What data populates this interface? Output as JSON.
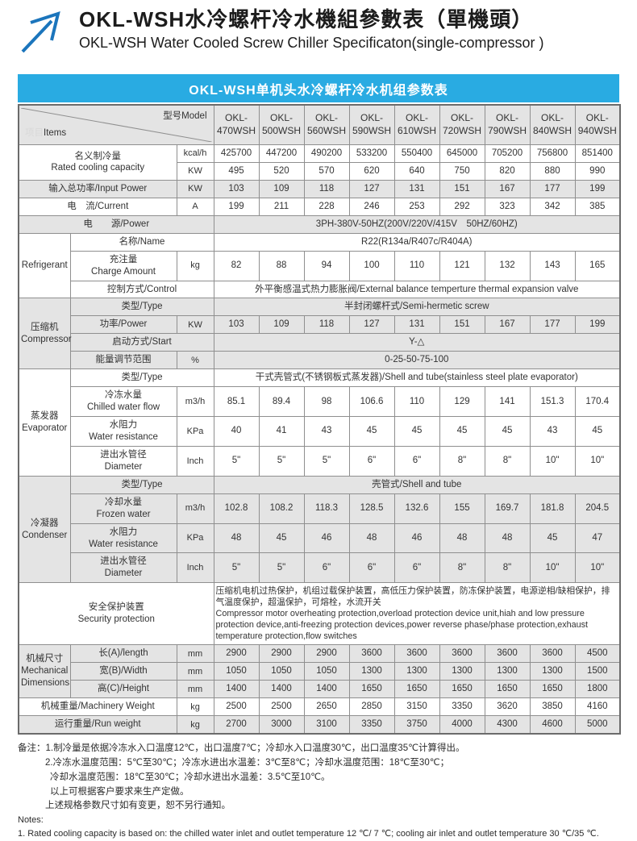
{
  "header": {
    "title_zh": "OKL-WSH水冷螺杆冷水機組參數表（單機頭）",
    "title_en": "OKL-WSH Water Cooled Screw Chiller Specificaton(single-compressor )",
    "logo_color": "#1b75bc"
  },
  "banner": {
    "text": "OKL-WSH单机头水冷螺杆冷水机组参数表",
    "bg_color": "#29abe2"
  },
  "table": {
    "corner": {
      "items_zh": "项目",
      "items_en": "Items",
      "model": "型号Model"
    },
    "models": [
      "OKL-470WSH",
      "OKL-500WSH",
      "OKL-560WSH",
      "OKL-590WSH",
      "OKL-610WSH",
      "OKL-720WSH",
      "OKL-790WSH",
      "OKL-840WSH",
      "OKL-940WSH"
    ],
    "rows": [
      {
        "name": "rated-cooling-kcal",
        "label": "名义制冷量\nRated cooling capacity",
        "label_colspan": 2,
        "label_rowspan": 2,
        "unit": "kcal/h",
        "values": [
          "425700",
          "447200",
          "490200",
          "533200",
          "550400",
          "645000",
          "705200",
          "756800",
          "851400"
        ],
        "shade": false
      },
      {
        "name": "rated-cooling-kw",
        "unit": "KW",
        "values": [
          "495",
          "520",
          "570",
          "620",
          "640",
          "750",
          "820",
          "880",
          "990"
        ],
        "shade": false
      },
      {
        "name": "input-power",
        "label": "输入总功率/Input Power",
        "label_colspan": 2,
        "unit": "KW",
        "values": [
          "103",
          "109",
          "118",
          "127",
          "131",
          "151",
          "167",
          "177",
          "199"
        ],
        "shade": true
      },
      {
        "name": "current",
        "label": "电　流/Current",
        "label_colspan": 2,
        "unit": "A",
        "values": [
          "199",
          "211",
          "228",
          "246",
          "253",
          "292",
          "323",
          "342",
          "385"
        ],
        "shade": false
      },
      {
        "name": "power-supply",
        "label": "电　　源/Power",
        "label_colspan": 3,
        "span": "3PH-380V-50HZ(200V/220V/415V　50HZ/60HZ)",
        "shade": true
      },
      {
        "name": "refrigerant-name",
        "section": "Refrigerant",
        "section_rowspan": 3,
        "label": "名称/Name",
        "label_colspan": 2,
        "span": "R22(R134a/R407c/R404A)",
        "shade": false
      },
      {
        "name": "refrigerant-charge",
        "label": "充注量\nCharge Amount",
        "unit": "kg",
        "values": [
          "82",
          "88",
          "94",
          "100",
          "110",
          "121",
          "132",
          "143",
          "165"
        ],
        "shade": false
      },
      {
        "name": "refrigerant-control",
        "label": "控制方式/Control",
        "label_colspan": 2,
        "span": "外平衡感温式热力膨胀阀/External balance temperture thermal expansion valve",
        "shade": false
      },
      {
        "name": "compressor-type",
        "section": "压缩机\nCompressor",
        "section_rowspan": 4,
        "label": "类型/Type",
        "label_colspan": 2,
        "span": "半封闭螺杆式/Semi-hermetic screw",
        "shade": true
      },
      {
        "name": "compressor-power",
        "label": "功率/Power",
        "unit": "KW",
        "values": [
          "103",
          "109",
          "118",
          "127",
          "131",
          "151",
          "167",
          "177",
          "199"
        ],
        "shade": true
      },
      {
        "name": "compressor-start",
        "label": "启动方式/Start",
        "label_colspan": 2,
        "span": "Y-△",
        "shade": true
      },
      {
        "name": "compressor-energy-range",
        "label": "能量调节范围",
        "unit": "%",
        "span": "0-25-50-75-100",
        "shade": true
      },
      {
        "name": "evaporator-type",
        "section": "蒸发器\nEvaporator",
        "section_rowspan": 4,
        "label": "类型/Type",
        "label_colspan": 2,
        "span": "干式壳管式(不锈钢板式蒸发器)/Shell and tube(stainless steel plate evaporator)",
        "shade": false
      },
      {
        "name": "evaporator-chilled-water-flow",
        "label": "冷冻水量\nChilled water flow",
        "unit": "m3/h",
        "values": [
          "85.1",
          "89.4",
          "98",
          "106.6",
          "110",
          "129",
          "141",
          "151.3",
          "170.4"
        ],
        "shade": false
      },
      {
        "name": "evaporator-water-resistance",
        "label": "水阻力\nWater resistance",
        "unit": "KPa",
        "values": [
          "40",
          "41",
          "43",
          "45",
          "45",
          "45",
          "45",
          "43",
          "45"
        ],
        "shade": false
      },
      {
        "name": "evaporator-diameter",
        "label": "进出水管径\nDiameter",
        "unit": "Inch",
        "values": [
          "5\"",
          "5\"",
          "5\"",
          "6\"",
          "6\"",
          "8\"",
          "8\"",
          "10\"",
          "10\""
        ],
        "shade": false
      },
      {
        "name": "condenser-type",
        "section": "冷凝器\nCondenser",
        "section_rowspan": 4,
        "label": "类型/Type",
        "label_colspan": 2,
        "span": "壳管式/Shell and tube",
        "shade": true
      },
      {
        "name": "condenser-frozen-water",
        "label": "冷却水量\nFrozen water",
        "unit": "m3/h",
        "values": [
          "102.8",
          "108.2",
          "118.3",
          "128.5",
          "132.6",
          "155",
          "169.7",
          "181.8",
          "204.5"
        ],
        "shade": true
      },
      {
        "name": "condenser-water-resistance",
        "label": "水阻力\nWater resistance",
        "unit": "KPa",
        "values": [
          "48",
          "45",
          "46",
          "48",
          "46",
          "48",
          "48",
          "45",
          "47"
        ],
        "shade": true
      },
      {
        "name": "condenser-diameter",
        "label": "进出水管径\nDiameter",
        "unit": "Inch",
        "values": [
          "5\"",
          "5\"",
          "6\"",
          "6\"",
          "6\"",
          "8\"",
          "8\"",
          "10\"",
          "10\""
        ],
        "shade": true
      },
      {
        "name": "security-protection",
        "label": "安全保护装置\nSecurity protection",
        "label_colspan": 3,
        "span": "压缩机电机过热保护，机组过载保护装置，高低压力保护装置，防冻保护装置，电源逆相/缺相保护，排气温度保护，超温保护，可熔栓，水流开关\nCompressor motor overheating protection,overload protection device unit,hiah and low pressure protection device,anti-freezing protection devices,power reverse phase/phase protection,exhaust temperature protection,flow switches",
        "big": true,
        "shade": false
      },
      {
        "name": "dimension-length",
        "section": "机械尺寸\nMechanical\nDimensions",
        "section_rowspan": 3,
        "label": "长(A)/length",
        "unit": "mm",
        "values": [
          "2900",
          "2900",
          "2900",
          "3600",
          "3600",
          "3600",
          "3600",
          "3600",
          "4500"
        ],
        "shade": true
      },
      {
        "name": "dimension-width",
        "label": "宽(B)/Width",
        "unit": "mm",
        "values": [
          "1050",
          "1050",
          "1050",
          "1300",
          "1300",
          "1300",
          "1300",
          "1300",
          "1500"
        ],
        "shade": true
      },
      {
        "name": "dimension-height",
        "label": "高(C)/Height",
        "unit": "mm",
        "values": [
          "1400",
          "1400",
          "1400",
          "1650",
          "1650",
          "1650",
          "1650",
          "1650",
          "1800"
        ],
        "shade": true
      },
      {
        "name": "machinery-weight",
        "label": "机械重量/Machinery Weight",
        "label_colspan": 2,
        "unit": "kg",
        "values": [
          "2500",
          "2500",
          "2650",
          "2850",
          "3150",
          "3350",
          "3620",
          "3850",
          "4160"
        ],
        "shade": false
      },
      {
        "name": "run-weight",
        "label": "运行重量/Run weight",
        "label_colspan": 2,
        "unit": "kg",
        "values": [
          "2700",
          "3000",
          "3100",
          "3350",
          "3750",
          "4000",
          "4300",
          "4600",
          "5000"
        ],
        "shade": true
      }
    ]
  },
  "notes": {
    "lines": [
      {
        "text": "备注：1.制冷量是依据冷冻水入口温度12℃，出口温度7℃；冷却水入口温度30℃，出口温度35℃计算得出。",
        "indent": 0,
        "lang": "zh"
      },
      {
        "text": "2.冷冻水温度范围：5℃至30℃；冷冻水进出水温差：3℃至8℃；冷却水温度范围：18℃至30℃；",
        "indent": 1,
        "lang": "zh"
      },
      {
        "text": "冷却水温度范围：18℃至30℃；冷却水进出水温差：3.5℃至10℃。",
        "indent": 2,
        "lang": "zh"
      },
      {
        "text": "以上可根据客户要求来生产定做。",
        "indent": 2,
        "lang": "zh"
      },
      {
        "text": "上述规格参数尺寸如有变更，恕不另行通知。",
        "indent": 1,
        "lang": "zh"
      },
      {
        "text": "Notes:",
        "indent": 0,
        "lang": "en"
      },
      {
        "text": "1. Rated cooling capacity is based on: the chilled water inlet and outlet temperature 12 ℃/ 7 ℃; cooling air inlet and outlet temperature 30 ℃/35 ℃.",
        "indent": 0,
        "lang": "en"
      }
    ]
  }
}
